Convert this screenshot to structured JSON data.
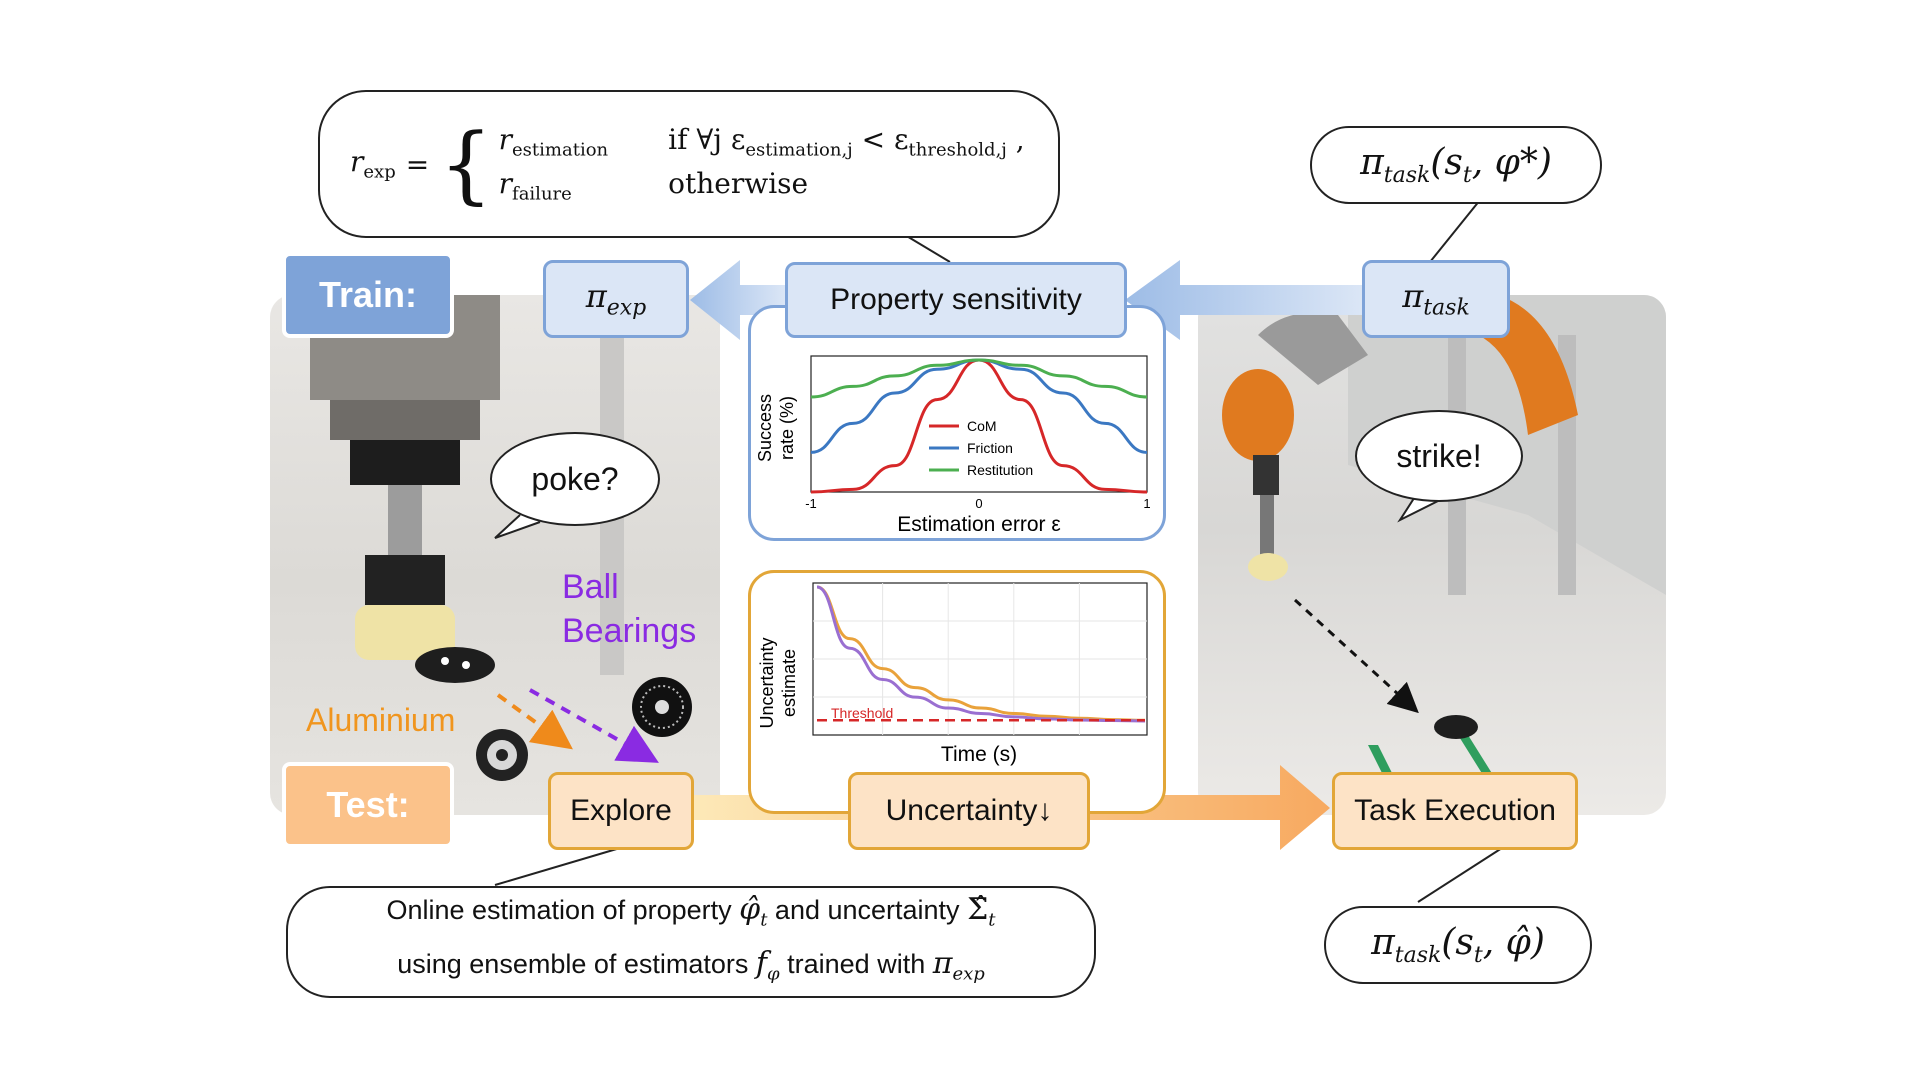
{
  "train_label": "Train:",
  "test_label": "Test:",
  "boxes": {
    "pi_exp": "π",
    "pi_exp_sub": "exp",
    "property_sensitivity": "Property sensitivity",
    "pi_task": "π",
    "pi_task_sub": "task",
    "explore": "Explore",
    "uncertainty": "Uncertainty↓",
    "task_execution": "Task Execution"
  },
  "reward_formula": {
    "lhs": "r",
    "lhs_sub": "exp",
    "case1_r": "r",
    "case1_sub": "estimation",
    "case1_cond": "if ∀j ε",
    "case1_cond_sub1": "estimation,j",
    "case1_cond_mid": " < ε",
    "case1_cond_sub2": "threshold,j",
    "case2_r": "r",
    "case2_sub": "failure",
    "case2_cond": "otherwise"
  },
  "top_right_bubble": "π",
  "top_right_bubble_sub": "task",
  "top_right_bubble_args": "(s",
  "top_right_bubble_args_sub": "t",
  "top_right_bubble_args_end": ", φ*)",
  "bottom_right_bubble": "π",
  "bottom_right_bubble_sub": "task",
  "bottom_right_bubble_args": "(s",
  "bottom_right_bubble_args_sub": "t",
  "bottom_right_bubble_args_end": ", φ̂)",
  "bottom_left_bubble": {
    "line1_a": "Online estimation of property ",
    "line1_phi": "φ̂",
    "line1_phi_sub": "t",
    "line1_b": " and uncertainty ",
    "line1_sigma": "Σ̂",
    "line1_sigma_sub": "t",
    "line2_a": "using ensemble of estimators ",
    "line2_f": "f",
    "line2_f_sub": "φ",
    "line2_b": " trained with ",
    "line2_pi": "π",
    "line2_pi_sub": "exp"
  },
  "speech": {
    "poke": "poke?",
    "strike": "strike!"
  },
  "materials": {
    "aluminium": "Aluminium",
    "ball_bearings_1": "Ball",
    "ball_bearings_2": "Bearings"
  },
  "colors": {
    "blue": "#7ea3d8",
    "orange": "#e9a23b",
    "purple": "#8a2be2",
    "red": "#d62728",
    "green": "#4caf50",
    "line_blue": "#3b78c2"
  },
  "chart_data": [
    {
      "type": "line",
      "title": "",
      "xlabel": "Estimation error ε",
      "ylabel": "Success rate (%)",
      "xlim": [
        -1,
        1
      ],
      "x_ticks": [
        "-1",
        "0",
        "1"
      ],
      "legend_position": "center",
      "series": [
        {
          "name": "CoM",
          "color": "#d62728",
          "x": [
            -1,
            -0.75,
            -0.5,
            -0.25,
            0,
            0.25,
            0.5,
            0.75,
            1
          ],
          "values": [
            0.0,
            0.02,
            0.2,
            0.7,
            1.0,
            0.7,
            0.2,
            0.02,
            0.0
          ]
        },
        {
          "name": "Friction",
          "color": "#3b78c2",
          "x": [
            -1,
            -0.75,
            -0.5,
            -0.25,
            0,
            0.25,
            0.5,
            0.75,
            1
          ],
          "values": [
            0.3,
            0.52,
            0.75,
            0.93,
            1.0,
            0.93,
            0.75,
            0.52,
            0.3
          ]
        },
        {
          "name": "Restitution",
          "color": "#4caf50",
          "x": [
            -1,
            -0.75,
            -0.5,
            -0.25,
            0,
            0.25,
            0.5,
            0.75,
            1
          ],
          "values": [
            0.72,
            0.8,
            0.88,
            0.96,
            1.0,
            0.96,
            0.88,
            0.8,
            0.72
          ]
        }
      ]
    },
    {
      "type": "line",
      "title": "",
      "xlabel": "Time (s)",
      "ylabel": "Uncertainty estimate",
      "grid": true,
      "annotations": [
        "Threshold"
      ],
      "series": [
        {
          "color": "#e9a23b",
          "x": [
            0,
            0.1,
            0.2,
            0.3,
            0.4,
            0.5,
            0.6,
            0.7,
            0.8,
            0.9,
            1
          ],
          "values": [
            1.0,
            0.62,
            0.4,
            0.26,
            0.17,
            0.11,
            0.07,
            0.05,
            0.035,
            0.025,
            0.02
          ]
        },
        {
          "color": "#9a6fd1",
          "x": [
            0,
            0.1,
            0.2,
            0.3,
            0.4,
            0.5,
            0.6,
            0.7,
            0.8,
            0.9,
            1
          ],
          "values": [
            1.0,
            0.55,
            0.32,
            0.19,
            0.11,
            0.07,
            0.045,
            0.03,
            0.022,
            0.018,
            0.015
          ]
        }
      ],
      "threshold": 0.02
    }
  ]
}
